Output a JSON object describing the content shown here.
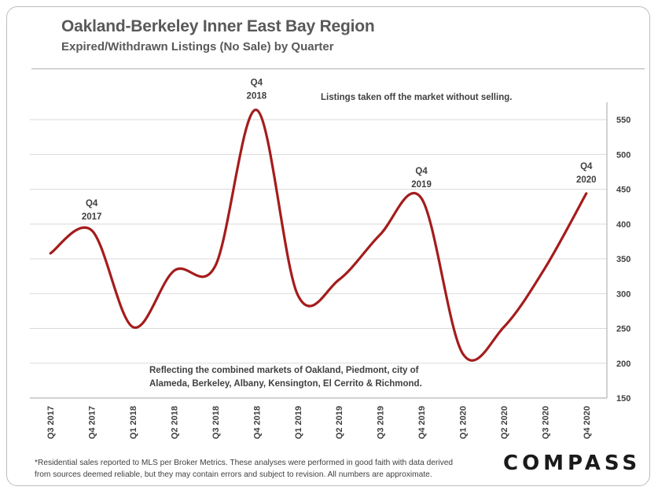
{
  "header": {
    "title": "Oakland-Berkeley Inner East Bay Region",
    "subtitle": "Expired/Withdrawn  Listings (No Sale) by Quarter"
  },
  "chart_data": {
    "type": "line",
    "title": "Oakland-Berkeley Inner East Bay Region",
    "subtitle": "Expired/Withdrawn  Listings (No Sale) by Quarter",
    "categories": [
      "Q3 2017",
      "Q4 2017",
      "Q1 2018",
      "Q2 2018",
      "Q3 2018",
      "Q4 2018",
      "Q1 2019",
      "Q2 2019",
      "Q3 2019",
      "Q4 2019",
      "Q1 2020",
      "Q2 2020",
      "Q3 2020",
      "Q4 2020"
    ],
    "series": [
      {
        "values": [
          358,
          391,
          252,
          333,
          340,
          564,
          298,
          320,
          385,
          437,
          214,
          252,
          337,
          444
        ]
      }
    ],
    "ylim": [
      150,
      575
    ],
    "yticks": [
      150,
      200,
      250,
      300,
      350,
      400,
      450,
      500,
      550
    ],
    "y_axis_side": "right",
    "grid": true,
    "line_color": "#a51c1c",
    "annotations": [
      {
        "index": 1,
        "lines": [
          "Q4",
          "2017"
        ]
      },
      {
        "index": 5,
        "lines": [
          "Q4",
          "2018"
        ]
      },
      {
        "index": 9,
        "lines": [
          "Q4",
          "2019"
        ]
      },
      {
        "index": 13,
        "lines": [
          "Q4",
          "2020"
        ]
      }
    ],
    "note_top": "Listings taken off the market without selling.",
    "note_bottom": [
      "Reflecting the combined markets of Oakland, Piedmont, city of",
      "Alameda, Berkeley, Albany, Kensington, El Cerrito & Richmond."
    ]
  },
  "footer": {
    "footnote_lines": [
      "*Residential sales reported to MLS per Broker Metrics. These analyses were performed in good faith with data derived",
      "from sources deemed reliable, but they may contain errors and subject to revision. All numbers are approximate."
    ],
    "logo": "COMPASS"
  }
}
